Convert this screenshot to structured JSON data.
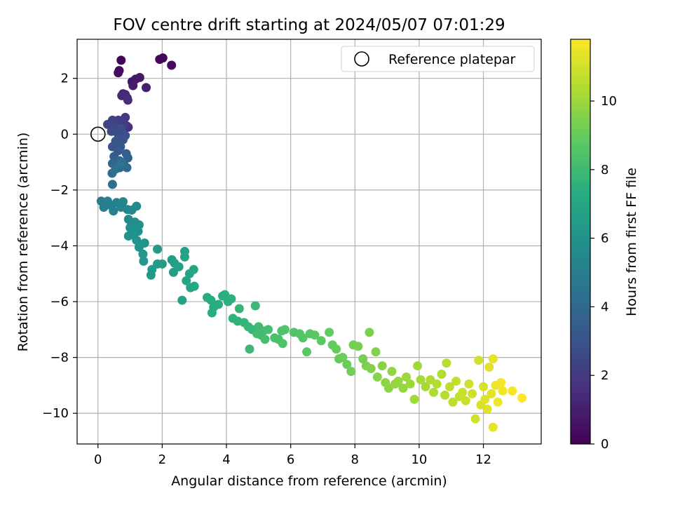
{
  "chart_data": {
    "type": "scatter",
    "title": "FOV centre drift starting at 2024/05/07 07:01:29",
    "xlabel": "Angular distance from reference (arcmin)",
    "ylabel": "Rotation from reference (arcmin)",
    "xlim": [
      -0.65,
      13.8
    ],
    "ylim": [
      -11.1,
      3.4
    ],
    "xticks": [
      0,
      2,
      4,
      6,
      8,
      10,
      12
    ],
    "yticks": [
      -10,
      -8,
      -6,
      -4,
      -2,
      0,
      2
    ],
    "grid": true,
    "legend": {
      "location": "top-right",
      "entries": [
        "Reference platepar"
      ]
    },
    "reference_point": {
      "x": 0,
      "y": 0
    },
    "colorbar": {
      "label": "Hours from first FF file",
      "range": [
        0,
        11.8
      ],
      "ticks": [
        0,
        2,
        4,
        6,
        8,
        10
      ],
      "colormap": "viridis"
    },
    "points": [
      [
        0.72,
        2.65,
        0.1
      ],
      [
        0.66,
        2.28,
        0.3
      ],
      [
        0.63,
        2.2,
        0.4
      ],
      [
        1.92,
        2.68,
        0.2
      ],
      [
        2.02,
        2.73,
        0.2
      ],
      [
        2.29,
        2.47,
        0.3
      ],
      [
        1.06,
        1.88,
        0.7
      ],
      [
        1.17,
        1.97,
        0.8
      ],
      [
        1.3,
        2.03,
        0.8
      ],
      [
        1.09,
        1.74,
        0.9
      ],
      [
        1.5,
        1.67,
        1.0
      ],
      [
        0.78,
        1.45,
        1.2
      ],
      [
        0.85,
        1.42,
        1.3
      ],
      [
        0.91,
        1.3,
        1.4
      ],
      [
        0.93,
        1.22,
        1.5
      ],
      [
        0.74,
        1.38,
        1.4
      ],
      [
        0.89,
        0.3,
        1.6
      ],
      [
        0.94,
        0.25,
        1.7
      ],
      [
        0.85,
        0.6,
        2.0
      ],
      [
        0.79,
        0.35,
        2.1
      ],
      [
        0.63,
        0.5,
        2.2
      ],
      [
        0.45,
        0.5,
        2.3
      ],
      [
        0.3,
        0.35,
        2.4
      ],
      [
        0.52,
        0.25,
        2.5
      ],
      [
        0.42,
        0.1,
        2.6
      ],
      [
        0.72,
        0.2,
        2.7
      ],
      [
        0.63,
        0.0,
        2.8
      ],
      [
        0.85,
        -0.05,
        2.9
      ],
      [
        0.55,
        -0.25,
        3.0
      ],
      [
        0.78,
        -0.2,
        3.0
      ],
      [
        0.45,
        -0.45,
        3.1
      ],
      [
        0.7,
        -0.45,
        3.2
      ],
      [
        0.62,
        -0.6,
        3.3
      ],
      [
        0.5,
        -0.8,
        3.4
      ],
      [
        0.88,
        -0.7,
        3.5
      ],
      [
        0.93,
        -0.85,
        3.6
      ],
      [
        0.67,
        -0.95,
        3.7
      ],
      [
        0.8,
        -1.05,
        3.8
      ],
      [
        0.45,
        -1.05,
        3.9
      ],
      [
        0.68,
        -1.2,
        4.0
      ],
      [
        0.9,
        -1.2,
        4.1
      ],
      [
        0.44,
        -1.4,
        4.2
      ],
      [
        0.45,
        -1.8,
        4.3
      ],
      [
        0.55,
        -1.25,
        4.4
      ],
      [
        0.72,
        -1.02,
        4.5
      ],
      [
        0.1,
        -2.4,
        4.9
      ],
      [
        0.18,
        -2.62,
        5.0
      ],
      [
        0.3,
        -2.4,
        5.0
      ],
      [
        0.4,
        -2.55,
        5.1
      ],
      [
        0.48,
        -2.75,
        5.1
      ],
      [
        0.58,
        -2.45,
        5.2
      ],
      [
        0.72,
        -2.62,
        5.3
      ],
      [
        0.78,
        -2.42,
        5.3
      ],
      [
        0.92,
        -2.7,
        5.4
      ],
      [
        1.05,
        -2.72,
        5.4
      ],
      [
        1.2,
        -2.58,
        5.5
      ],
      [
        0.95,
        -3.05,
        5.6
      ],
      [
        1.05,
        -3.2,
        5.7
      ],
      [
        1.15,
        -3.15,
        5.7
      ],
      [
        1.28,
        -3.25,
        5.8
      ],
      [
        1.0,
        -3.35,
        5.8
      ],
      [
        1.13,
        -3.48,
        5.9
      ],
      [
        1.25,
        -3.48,
        5.9
      ],
      [
        0.95,
        -3.65,
        6.0
      ],
      [
        1.08,
        -3.6,
        6.0
      ],
      [
        1.2,
        -3.8,
        6.0
      ],
      [
        1.45,
        -3.9,
        6.1
      ],
      [
        1.28,
        -4.05,
        6.1
      ],
      [
        1.4,
        -4.3,
        6.2
      ],
      [
        1.42,
        -4.55,
        6.2
      ],
      [
        1.68,
        -4.85,
        6.3
      ],
      [
        1.65,
        -5.05,
        6.3
      ],
      [
        1.85,
        -4.12,
        6.4
      ],
      [
        1.85,
        -4.65,
        6.4
      ],
      [
        2.0,
        -4.65,
        6.5
      ],
      [
        2.3,
        -4.5,
        6.5
      ],
      [
        2.38,
        -4.62,
        6.6
      ],
      [
        2.35,
        -4.95,
        6.6
      ],
      [
        2.52,
        -4.75,
        6.7
      ],
      [
        2.7,
        -4.2,
        6.7
      ],
      [
        2.7,
        -4.4,
        6.8
      ],
      [
        2.62,
        -5.95,
        6.8
      ],
      [
        2.85,
        -5.0,
        6.8
      ],
      [
        2.75,
        -5.25,
        6.9
      ],
      [
        2.98,
        -4.85,
        6.9
      ],
      [
        2.88,
        -5.5,
        7.0
      ],
      [
        3.0,
        -5.45,
        7.0
      ],
      [
        3.4,
        -5.85,
        7.1
      ],
      [
        3.52,
        -5.95,
        7.2
      ],
      [
        3.6,
        -6.2,
        7.2
      ],
      [
        3.55,
        -6.4,
        7.3
      ],
      [
        3.75,
        -6.1,
        7.3
      ],
      [
        3.88,
        -5.8,
        7.4
      ],
      [
        3.95,
        -5.75,
        7.4
      ],
      [
        4.05,
        -6.0,
        7.5
      ],
      [
        4.15,
        -5.9,
        7.5
      ],
      [
        4.2,
        -6.6,
        7.6
      ],
      [
        4.35,
        -6.7,
        7.6
      ],
      [
        4.4,
        -6.25,
        7.7
      ],
      [
        4.55,
        -6.75,
        7.7
      ],
      [
        4.68,
        -6.9,
        7.8
      ],
      [
        4.8,
        -7.0,
        7.8
      ],
      [
        4.72,
        -7.7,
        7.9
      ],
      [
        4.9,
        -6.15,
        7.9
      ],
      [
        5.0,
        -6.9,
        8.0
      ],
      [
        5.08,
        -7.2,
        8.0
      ],
      [
        5.15,
        -7.05,
        8.1
      ],
      [
        4.95,
        -7.15,
        8.1
      ],
      [
        5.2,
        -7.35,
        8.2
      ],
      [
        5.3,
        -7.0,
        8.2
      ],
      [
        5.5,
        -7.3,
        8.3
      ],
      [
        5.62,
        -7.35,
        8.3
      ],
      [
        5.75,
        -7.5,
        8.4
      ],
      [
        5.72,
        -7.05,
        8.4
      ],
      [
        5.82,
        -7.0,
        8.5
      ],
      [
        6.1,
        -7.1,
        8.5
      ],
      [
        6.28,
        -7.15,
        8.6
      ],
      [
        6.38,
        -7.3,
        8.6
      ],
      [
        6.5,
        -7.8,
        8.7
      ],
      [
        6.6,
        -7.15,
        8.7
      ],
      [
        6.75,
        -7.2,
        8.8
      ],
      [
        6.95,
        -7.4,
        8.8
      ],
      [
        7.2,
        -7.1,
        8.9
      ],
      [
        7.3,
        -7.55,
        8.9
      ],
      [
        7.42,
        -7.7,
        9.0
      ],
      [
        7.5,
        -8.05,
        9.0
      ],
      [
        7.62,
        -8.0,
        9.1
      ],
      [
        7.75,
        -8.25,
        9.1
      ],
      [
        7.88,
        -8.5,
        9.2
      ],
      [
        7.95,
        -7.55,
        9.2
      ],
      [
        8.1,
        -7.6,
        9.3
      ],
      [
        8.25,
        -8.05,
        9.3
      ],
      [
        8.35,
        -8.3,
        9.4
      ],
      [
        8.45,
        -7.1,
        9.4
      ],
      [
        8.5,
        -8.4,
        9.5
      ],
      [
        8.65,
        -7.8,
        9.5
      ],
      [
        8.7,
        -8.7,
        9.6
      ],
      [
        8.85,
        -8.3,
        9.6
      ],
      [
        8.95,
        -8.9,
        9.7
      ],
      [
        9.05,
        -9.1,
        9.7
      ],
      [
        9.15,
        -8.5,
        9.8
      ],
      [
        9.25,
        -8.95,
        9.8
      ],
      [
        9.35,
        -8.85,
        9.9
      ],
      [
        9.5,
        -9.1,
        9.9
      ],
      [
        9.6,
        -8.7,
        10.0
      ],
      [
        9.72,
        -8.95,
        10.0
      ],
      [
        9.85,
        -9.5,
        10.1
      ],
      [
        9.95,
        -8.3,
        10.1
      ],
      [
        10.05,
        -8.8,
        10.2
      ],
      [
        10.2,
        -9.05,
        10.2
      ],
      [
        10.35,
        -8.8,
        10.3
      ],
      [
        10.45,
        -9.25,
        10.3
      ],
      [
        10.55,
        -8.95,
        10.4
      ],
      [
        10.7,
        -8.6,
        10.4
      ],
      [
        10.8,
        -9.35,
        10.5
      ],
      [
        10.85,
        -8.2,
        10.5
      ],
      [
        10.95,
        -9.05,
        10.6
      ],
      [
        11.05,
        -9.6,
        10.6
      ],
      [
        11.15,
        -8.85,
        10.7
      ],
      [
        11.25,
        -9.4,
        10.7
      ],
      [
        11.35,
        -9.25,
        10.8
      ],
      [
        11.45,
        -9.55,
        10.8
      ],
      [
        11.55,
        -8.95,
        10.9
      ],
      [
        11.65,
        -9.3,
        10.9
      ],
      [
        11.75,
        -10.2,
        11.0
      ],
      [
        11.85,
        -8.1,
        11.0
      ],
      [
        11.92,
        -9.7,
        11.1
      ],
      [
        12.0,
        -9.05,
        11.1
      ],
      [
        12.05,
        -9.5,
        11.2
      ],
      [
        12.12,
        -9.85,
        11.2
      ],
      [
        12.18,
        -8.35,
        11.3
      ],
      [
        12.25,
        -9.3,
        11.3
      ],
      [
        12.3,
        -8.05,
        11.4
      ],
      [
        12.3,
        -10.5,
        11.4
      ],
      [
        12.38,
        -9.0,
        11.5
      ],
      [
        12.45,
        -9.6,
        11.5
      ],
      [
        12.55,
        -8.9,
        11.6
      ],
      [
        12.6,
        -9.2,
        11.6
      ],
      [
        12.9,
        -9.2,
        11.7
      ],
      [
        13.2,
        -9.45,
        11.8
      ]
    ]
  }
}
